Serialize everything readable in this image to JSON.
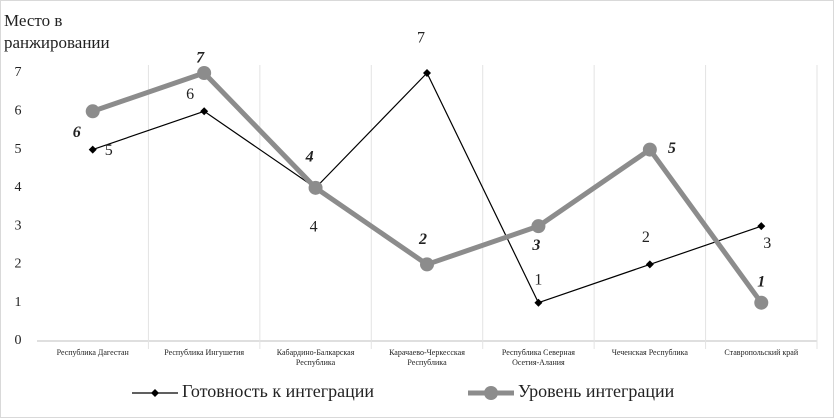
{
  "chart_data": {
    "type": "line",
    "y_label": "Место в ранжировании",
    "categories": [
      "Республика Дагестан",
      "Республика Ингушетия",
      "Кабардино-Балкарская Республика",
      "Карачаево-Черкесская Республика",
      "Республика Северная Осетия-Алания",
      "Чеченская Республика",
      "Ставропольский край"
    ],
    "series": [
      {
        "name": "Готовность к интеграции",
        "color": "#000000",
        "values": [
          5,
          6,
          4,
          7,
          1,
          2,
          3
        ]
      },
      {
        "name": "Уровень интеграции",
        "color": "#8c8c8c",
        "values": [
          6,
          7,
          4,
          2,
          3,
          5,
          1
        ]
      }
    ],
    "ylim": [
      0,
      7
    ],
    "yticks": [
      0,
      1,
      2,
      3,
      4,
      5,
      6,
      7
    ],
    "grid": true
  }
}
